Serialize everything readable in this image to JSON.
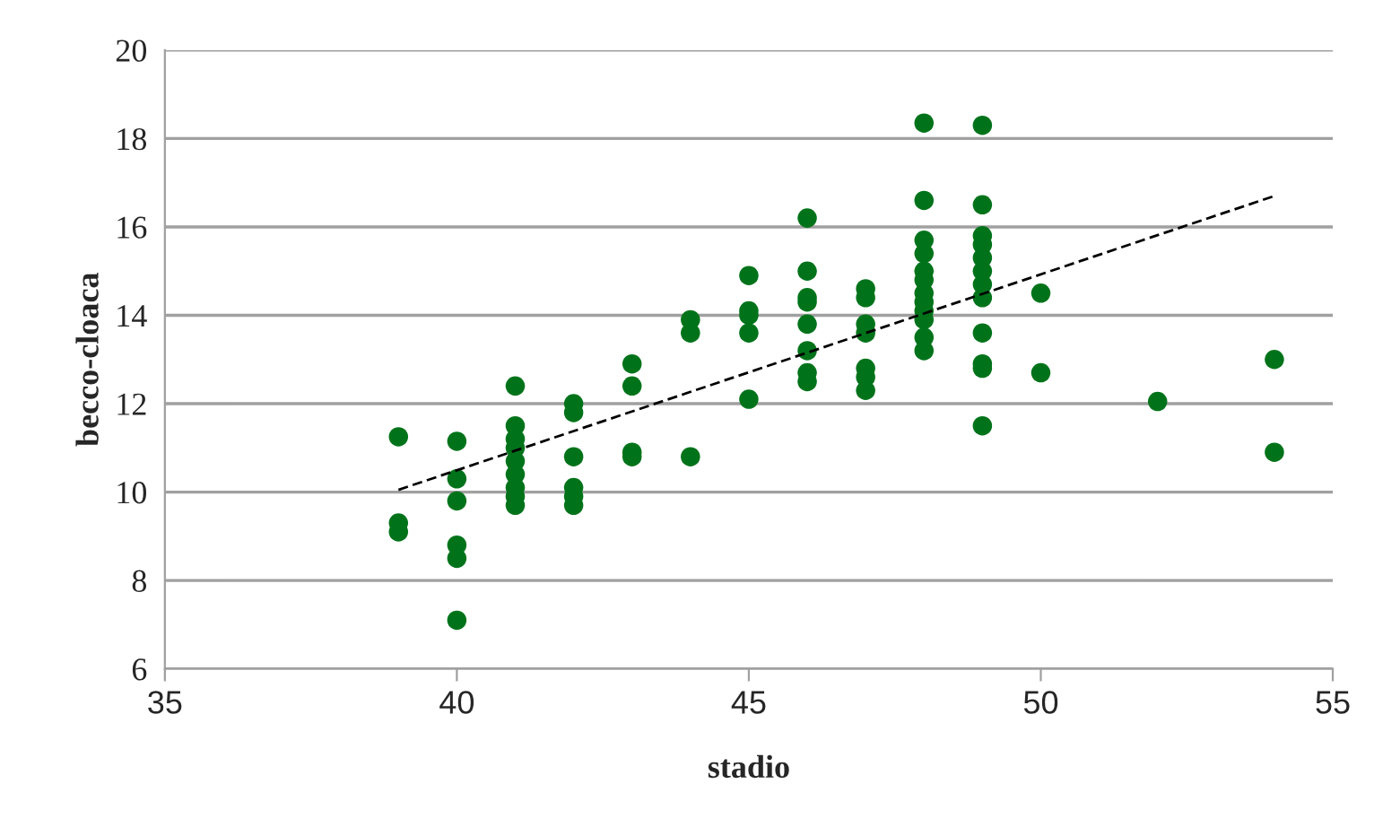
{
  "chart_data": {
    "type": "scatter",
    "xlabel": "stadio",
    "ylabel": "becco-cloaca",
    "xlim": [
      35,
      55
    ],
    "xticks": [
      35,
      40,
      45,
      50,
      55
    ],
    "ylim": [
      6,
      20
    ],
    "yticks": [
      6,
      8,
      10,
      12,
      14,
      16,
      18,
      20
    ],
    "grid": "y",
    "marker": "circle",
    "series": [
      {
        "color": "#00731a",
        "x": [
          39,
          39,
          39,
          40,
          40,
          40,
          40,
          40,
          40,
          41,
          41,
          41,
          41,
          41,
          41,
          41,
          41,
          41,
          42,
          42,
          42,
          42,
          42,
          42,
          43,
          43,
          43,
          43,
          44,
          44,
          44,
          45,
          45,
          45,
          45,
          45,
          46,
          46,
          46,
          46,
          46,
          46,
          46,
          46,
          47,
          47,
          47,
          47,
          47,
          47,
          47,
          48,
          48,
          48,
          48,
          48,
          48,
          48,
          48,
          48,
          48,
          48,
          48,
          49,
          49,
          49,
          49,
          49,
          49,
          49,
          49,
          49,
          49,
          49,
          49,
          50,
          50,
          52,
          54,
          54
        ],
        "values": [
          11.25,
          9.3,
          9.1,
          11.15,
          10.3,
          9.8,
          8.8,
          8.5,
          7.1,
          12.4,
          11.5,
          11.2,
          11.0,
          10.7,
          10.4,
          10.1,
          9.9,
          9.7,
          12.0,
          11.8,
          10.8,
          10.1,
          9.9,
          9.7,
          12.9,
          12.4,
          10.9,
          10.8,
          13.9,
          13.6,
          10.8,
          14.9,
          14.1,
          14.0,
          13.6,
          12.1,
          16.2,
          15.0,
          14.4,
          14.3,
          13.8,
          13.2,
          12.7,
          12.5,
          14.6,
          14.4,
          13.8,
          13.6,
          12.8,
          12.6,
          12.3,
          18.35,
          16.6,
          15.7,
          15.4,
          15.0,
          14.8,
          14.5,
          14.3,
          14.1,
          13.9,
          13.5,
          13.2,
          18.3,
          16.5,
          15.8,
          15.6,
          15.3,
          15.0,
          14.7,
          14.4,
          13.6,
          12.9,
          12.8,
          11.5,
          14.5,
          12.7,
          12.05,
          13.0,
          10.9
        ]
      },
      {
        "type": "line",
        "color": "#000000",
        "line_style": "dashed",
        "marker": "none",
        "x": [
          39,
          54
        ],
        "values": [
          10.05,
          16.7
        ]
      }
    ]
  }
}
